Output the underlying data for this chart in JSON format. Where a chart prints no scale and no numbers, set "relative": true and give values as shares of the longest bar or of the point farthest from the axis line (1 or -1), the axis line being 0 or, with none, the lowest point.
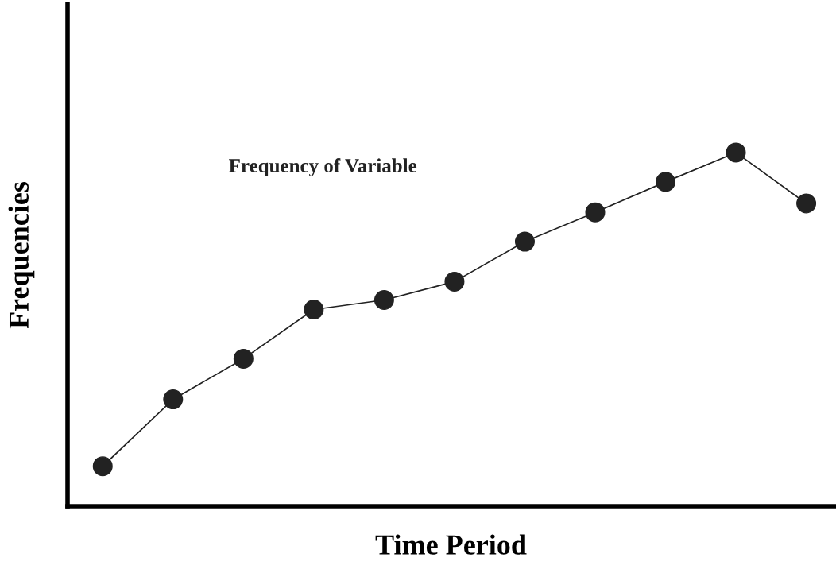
{
  "chart_data": {
    "type": "line",
    "relative": true,
    "xlabel": "Time Period",
    "ylabel": "Frequencies",
    "annotations": [
      "Frequency of Variable"
    ],
    "categories": [
      null,
      null,
      null,
      null,
      null,
      null,
      null,
      null,
      null,
      null,
      null
    ],
    "series": [
      {
        "color": "#222222",
        "values": [
          0.113,
          0.302,
          0.417,
          0.556,
          0.583,
          0.635,
          0.748,
          0.831,
          0.917,
          1,
          0.856
        ]
      }
    ],
    "marker": "circle",
    "line_style": "solid",
    "grid": false,
    "legend": false
  }
}
